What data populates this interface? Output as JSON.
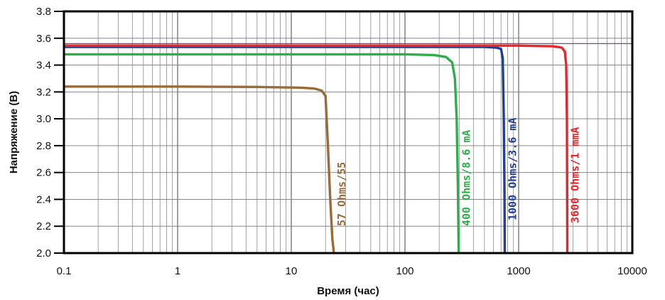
{
  "chart_data": {
    "type": "line",
    "title": "",
    "xlabel": "Время (час)",
    "ylabel": "Напряжение (В)",
    "x_scale": "log",
    "xlim": [
      0.1,
      10000
    ],
    "ylim": [
      2.0,
      3.8
    ],
    "grid": true,
    "legend": "inline labels next to each curve",
    "x_ticks": [
      "0.1",
      "1",
      "10",
      "100",
      "1000",
      "10000"
    ],
    "y_ticks": [
      "2.0",
      "2.2",
      "2.4",
      "2.6",
      "2.8",
      "3.0",
      "3.2",
      "3.4",
      "3.6",
      "3.8"
    ],
    "series": [
      {
        "name": "57 Ohms/55",
        "color": "#9a6b3a",
        "x": [
          0.1,
          1,
          5,
          12,
          16,
          18.5,
          20,
          21,
          22,
          23,
          23.7
        ],
        "y": [
          3.24,
          3.24,
          3.237,
          3.232,
          3.225,
          3.21,
          3.17,
          2.8,
          2.4,
          2.1,
          2.0
        ]
      },
      {
        "name": "400 Ohms/8.6 mA",
        "color": "#2eae4a",
        "x": [
          0.1,
          1,
          10,
          100,
          180,
          230,
          260,
          275,
          285,
          292,
          297
        ],
        "y": [
          3.48,
          3.48,
          3.48,
          3.48,
          3.475,
          3.46,
          3.42,
          3.3,
          3.0,
          2.5,
          2.0
        ]
      },
      {
        "name": "1000 Ohms/3.6 mA",
        "color": "#233f94",
        "x": [
          0.1,
          1,
          10,
          100,
          500,
          640,
          700,
          725,
          740,
          750,
          755
        ],
        "y": [
          3.535,
          3.535,
          3.535,
          3.535,
          3.535,
          3.53,
          3.52,
          3.45,
          3.0,
          2.5,
          2.0
        ]
      },
      {
        "name": "3600 Ohms/1 mmA",
        "color": "#e8252b",
        "x": [
          0.1,
          1,
          10,
          100,
          1000,
          2000,
          2400,
          2550,
          2620,
          2660,
          2680
        ],
        "y": [
          3.545,
          3.545,
          3.545,
          3.545,
          3.545,
          3.54,
          3.53,
          3.5,
          3.4,
          3.0,
          2.0
        ]
      }
    ],
    "reference_line": {
      "y": 3.56,
      "color": "#7a2a7a"
    }
  }
}
